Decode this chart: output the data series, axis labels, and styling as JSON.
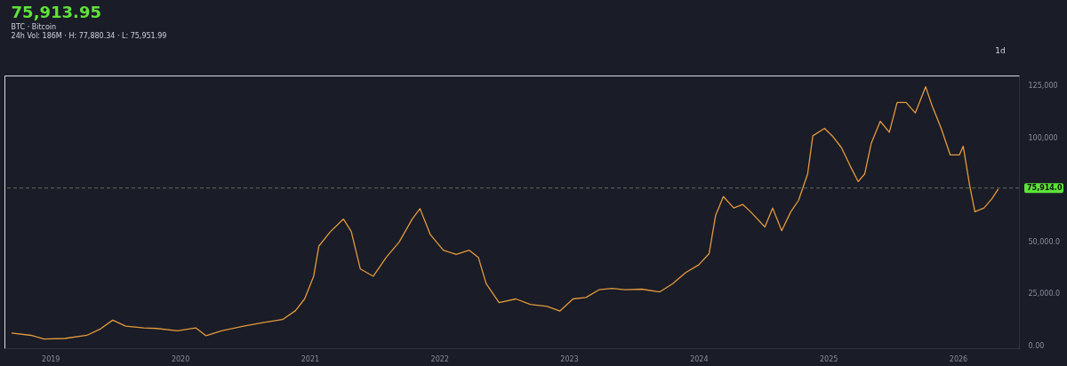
{
  "chart_data": {
    "type": "line",
    "title": "75,913.95",
    "subtitle": [
      "BTC · Bitcoin",
      "24h Vol: 186M · H: 77,880.34 · L: 75,951.99"
    ],
    "annotations": [
      "1d"
    ],
    "x": [
      2018.7,
      2018.85,
      2018.95,
      2019.11,
      2019.28,
      2019.38,
      2019.48,
      2019.58,
      2019.72,
      2019.82,
      2019.98,
      2020.12,
      2020.2,
      2020.32,
      2020.49,
      2020.65,
      2020.79,
      2020.89,
      2020.96,
      2021.03,
      2021.07,
      2021.16,
      2021.26,
      2021.32,
      2021.39,
      2021.49,
      2021.59,
      2021.69,
      2021.79,
      2021.85,
      2021.93,
      2022.03,
      2022.13,
      2022.23,
      2022.3,
      2022.36,
      2022.46,
      2022.59,
      2022.7,
      2022.83,
      2022.93,
      2023.03,
      2023.13,
      2023.23,
      2023.33,
      2023.43,
      2023.56,
      2023.7,
      2023.8,
      2023.9,
      2024.0,
      2024.08,
      2024.13,
      2024.19,
      2024.27,
      2024.34,
      2024.4,
      2024.51,
      2024.57,
      2024.64,
      2024.71,
      2024.77,
      2024.84,
      2024.88,
      2024.97,
      2025.03,
      2025.1,
      2025.17,
      2025.23,
      2025.28,
      2025.33,
      2025.4,
      2025.47,
      2025.53,
      2025.6,
      2025.67,
      2025.75,
      2025.8,
      2025.87,
      2025.94,
      2026.01,
      2026.04,
      2026.09,
      2026.13,
      2026.2,
      2026.26,
      2026.31
    ],
    "series": [
      {
        "color": "#e39a3c",
        "values": [
          6200,
          5100,
          3300,
          3600,
          5100,
          8000,
          12400,
          9500,
          8700,
          8400,
          7300,
          8700,
          4900,
          7300,
          9500,
          11300,
          12700,
          17000,
          22600,
          33500,
          48000,
          55000,
          61000,
          55000,
          37000,
          33500,
          42600,
          50000,
          61000,
          66000,
          53500,
          46000,
          44000,
          46000,
          42600,
          30000,
          20800,
          22600,
          20000,
          19000,
          16800,
          22600,
          23300,
          27000,
          27700,
          27000,
          27300,
          26000,
          30000,
          35300,
          39000,
          44400,
          62700,
          71800,
          66300,
          68000,
          64500,
          57200,
          66300,
          55400,
          64500,
          70000,
          82700,
          101000,
          104600,
          101000,
          95400,
          86300,
          79000,
          82700,
          97300,
          108000,
          102700,
          117000,
          117000,
          112000,
          124600,
          115500,
          104600,
          91800,
          91800,
          96000,
          77000,
          64500,
          66300,
          70700,
          75400
        ]
      }
    ],
    "xlim": [
      2018.645,
      2026.47
    ],
    "xticks": [
      2019,
      2020,
      2021,
      2022,
      2023,
      2024,
      2025,
      2026
    ],
    "ylim": [
      -1100,
      130000
    ],
    "yticks": [
      {
        "value": 0,
        "label": "0.00"
      },
      {
        "value": 25000,
        "label": "25,000.0"
      },
      {
        "value": 50000,
        "label": "50,000.0"
      },
      {
        "value": 100000,
        "label": "100,000"
      },
      {
        "value": 125000,
        "label": "125,000"
      }
    ],
    "ref_lines": [
      {
        "axis": "y",
        "value": 75914,
        "label": "75,914.0",
        "color": "#75806a",
        "line_style": "dashed"
      }
    ],
    "grid": false
  }
}
